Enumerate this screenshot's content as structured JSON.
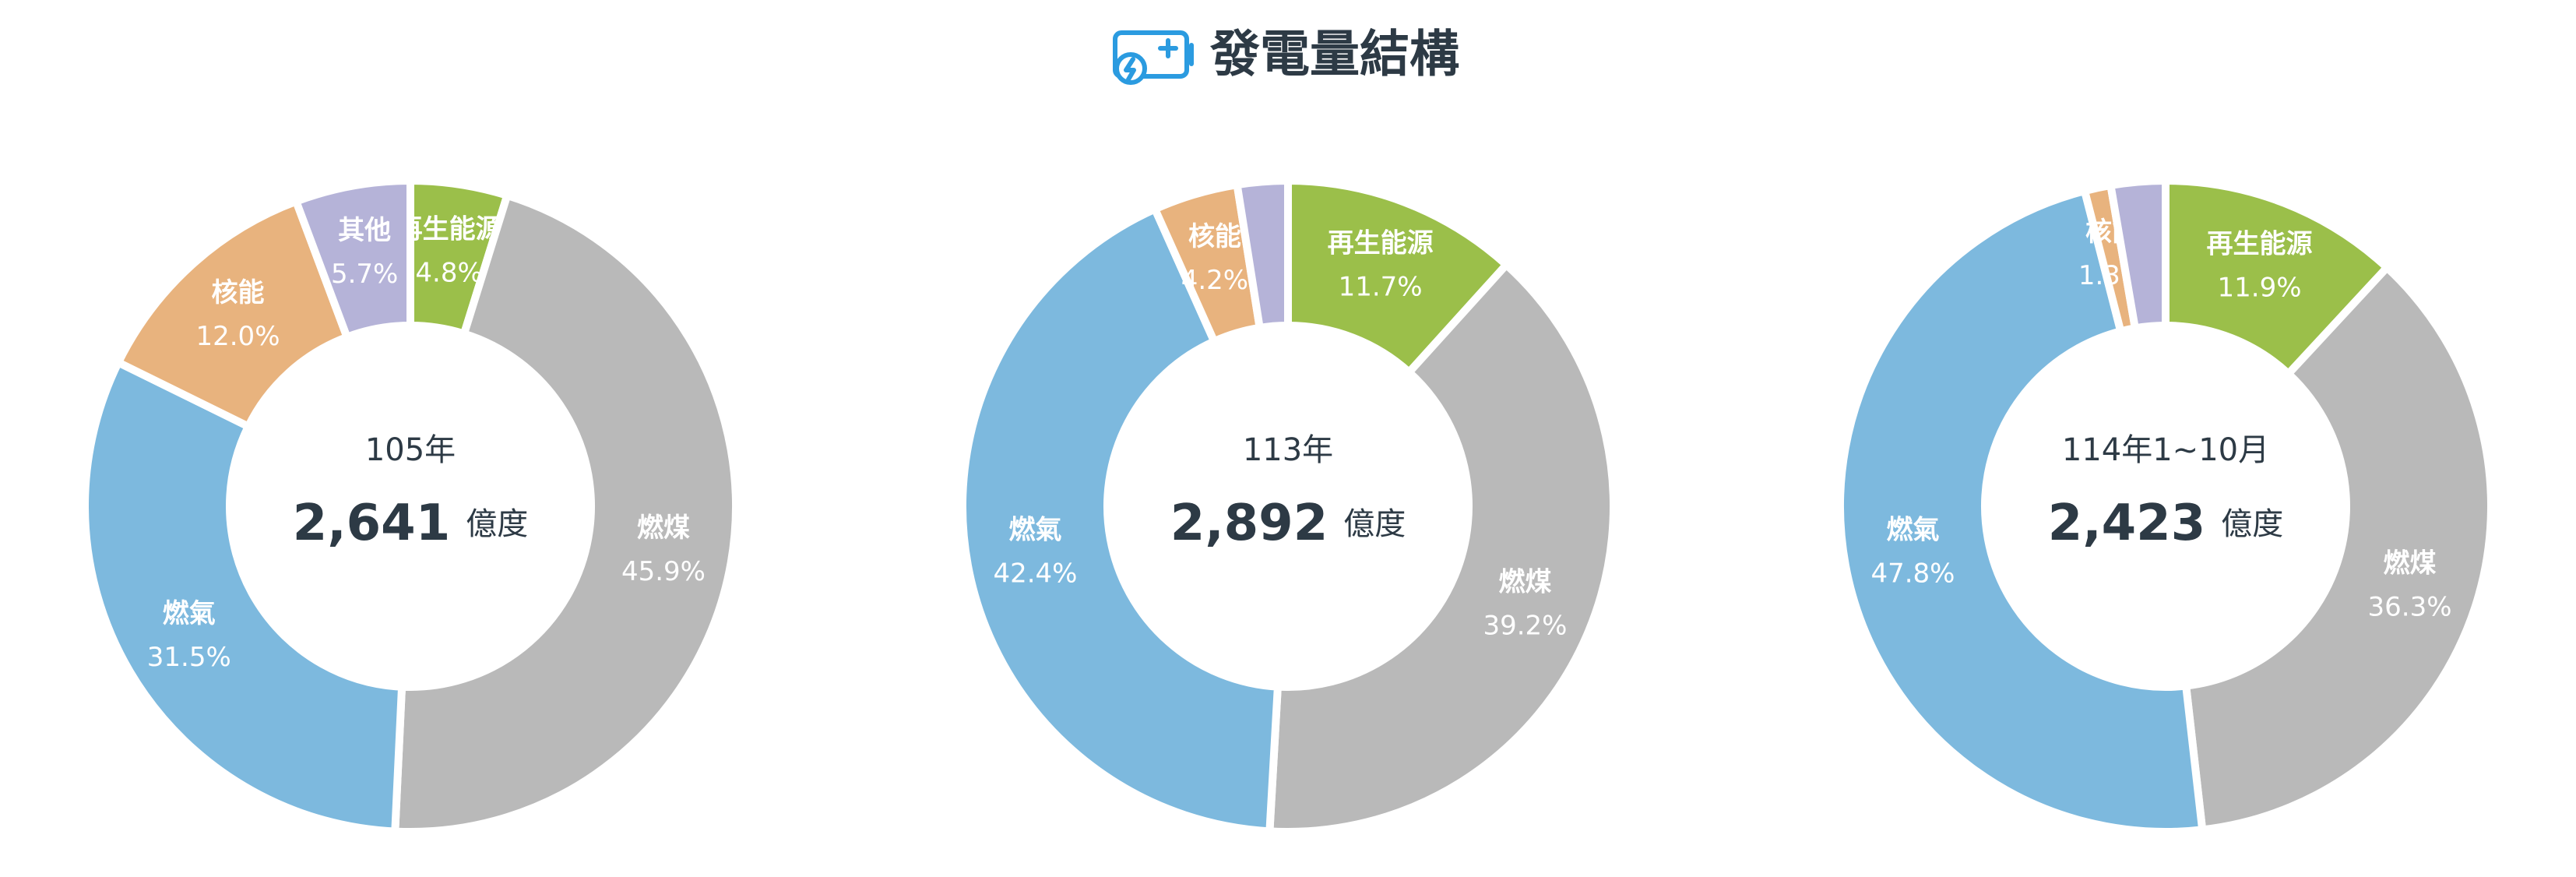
{
  "header": {
    "title": "發電量結構"
  },
  "chart_data": [
    {
      "type": "donut",
      "title": "105年",
      "total": "2,641",
      "unit": "億度",
      "categories": [
        "再生能源",
        "燃煤",
        "燃氣",
        "核能",
        "其他"
      ],
      "values": [
        4.8,
        45.9,
        31.5,
        12.0,
        5.7
      ],
      "value_labels": [
        "4.8%",
        "45.9%",
        "31.5%",
        "12.0%",
        "5.7%"
      ],
      "colors": [
        "#9bbf4a",
        "#b9b9b9",
        "#7db9de",
        "#e8b37e",
        "#b5b3d8"
      ]
    },
    {
      "type": "donut",
      "title": "113年",
      "total": "2,892",
      "unit": "億度",
      "categories": [
        "再生能源",
        "燃煤",
        "燃氣",
        "核能",
        null
      ],
      "values": [
        11.7,
        39.2,
        42.4,
        4.2,
        2.5
      ],
      "value_labels": [
        "11.7%",
        "39.2%",
        "42.4%",
        "4.2%",
        null
      ],
      "colors": [
        "#9bbf4a",
        "#b9b9b9",
        "#7db9de",
        "#e8b37e",
        "#b5b3d8"
      ]
    },
    {
      "type": "donut",
      "title": "114年1~10月",
      "total": "2,423",
      "unit": "億度",
      "categories": [
        "再生能源",
        "燃煤",
        "燃氣",
        "核能",
        null
      ],
      "values": [
        11.9,
        36.3,
        47.8,
        1.3,
        2.7
      ],
      "value_labels": [
        "11.9%",
        "36.3%",
        "47.8%",
        "1.3%",
        null
      ],
      "colors": [
        "#9bbf4a",
        "#b9b9b9",
        "#7db9de",
        "#e8b37e",
        "#b5b3d8"
      ]
    }
  ]
}
